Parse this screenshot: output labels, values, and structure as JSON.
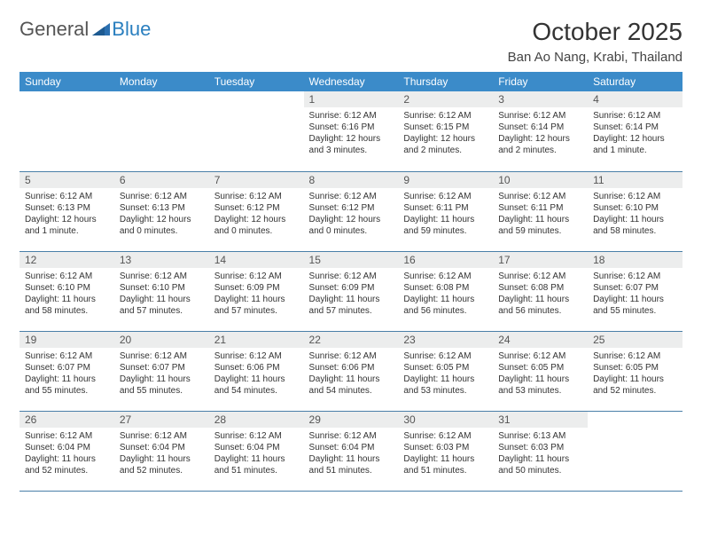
{
  "brand": {
    "part1": "General",
    "part2": "Blue"
  },
  "title": "October 2025",
  "location": "Ban Ao Nang, Krabi, Thailand",
  "colors": {
    "header_bg": "#3b8bc9",
    "header_text": "#ffffff",
    "daynum_bg": "#eceded",
    "row_border": "#4a7fa8",
    "brand_gray": "#555555",
    "brand_blue": "#2a7fbf",
    "logo_fill": "#2a6fb0"
  },
  "weekdays": [
    "Sunday",
    "Monday",
    "Tuesday",
    "Wednesday",
    "Thursday",
    "Friday",
    "Saturday"
  ],
  "weeks": [
    [
      {
        "empty": true
      },
      {
        "empty": true
      },
      {
        "empty": true
      },
      {
        "day": "1",
        "sunrise": "6:12 AM",
        "sunset": "6:16 PM",
        "daylight": "12 hours and 3 minutes."
      },
      {
        "day": "2",
        "sunrise": "6:12 AM",
        "sunset": "6:15 PM",
        "daylight": "12 hours and 2 minutes."
      },
      {
        "day": "3",
        "sunrise": "6:12 AM",
        "sunset": "6:14 PM",
        "daylight": "12 hours and 2 minutes."
      },
      {
        "day": "4",
        "sunrise": "6:12 AM",
        "sunset": "6:14 PM",
        "daylight": "12 hours and 1 minute."
      }
    ],
    [
      {
        "day": "5",
        "sunrise": "6:12 AM",
        "sunset": "6:13 PM",
        "daylight": "12 hours and 1 minute."
      },
      {
        "day": "6",
        "sunrise": "6:12 AM",
        "sunset": "6:13 PM",
        "daylight": "12 hours and 0 minutes."
      },
      {
        "day": "7",
        "sunrise": "6:12 AM",
        "sunset": "6:12 PM",
        "daylight": "12 hours and 0 minutes."
      },
      {
        "day": "8",
        "sunrise": "6:12 AM",
        "sunset": "6:12 PM",
        "daylight": "12 hours and 0 minutes."
      },
      {
        "day": "9",
        "sunrise": "6:12 AM",
        "sunset": "6:11 PM",
        "daylight": "11 hours and 59 minutes."
      },
      {
        "day": "10",
        "sunrise": "6:12 AM",
        "sunset": "6:11 PM",
        "daylight": "11 hours and 59 minutes."
      },
      {
        "day": "11",
        "sunrise": "6:12 AM",
        "sunset": "6:10 PM",
        "daylight": "11 hours and 58 minutes."
      }
    ],
    [
      {
        "day": "12",
        "sunrise": "6:12 AM",
        "sunset": "6:10 PM",
        "daylight": "11 hours and 58 minutes."
      },
      {
        "day": "13",
        "sunrise": "6:12 AM",
        "sunset": "6:10 PM",
        "daylight": "11 hours and 57 minutes."
      },
      {
        "day": "14",
        "sunrise": "6:12 AM",
        "sunset": "6:09 PM",
        "daylight": "11 hours and 57 minutes."
      },
      {
        "day": "15",
        "sunrise": "6:12 AM",
        "sunset": "6:09 PM",
        "daylight": "11 hours and 57 minutes."
      },
      {
        "day": "16",
        "sunrise": "6:12 AM",
        "sunset": "6:08 PM",
        "daylight": "11 hours and 56 minutes."
      },
      {
        "day": "17",
        "sunrise": "6:12 AM",
        "sunset": "6:08 PM",
        "daylight": "11 hours and 56 minutes."
      },
      {
        "day": "18",
        "sunrise": "6:12 AM",
        "sunset": "6:07 PM",
        "daylight": "11 hours and 55 minutes."
      }
    ],
    [
      {
        "day": "19",
        "sunrise": "6:12 AM",
        "sunset": "6:07 PM",
        "daylight": "11 hours and 55 minutes."
      },
      {
        "day": "20",
        "sunrise": "6:12 AM",
        "sunset": "6:07 PM",
        "daylight": "11 hours and 55 minutes."
      },
      {
        "day": "21",
        "sunrise": "6:12 AM",
        "sunset": "6:06 PM",
        "daylight": "11 hours and 54 minutes."
      },
      {
        "day": "22",
        "sunrise": "6:12 AM",
        "sunset": "6:06 PM",
        "daylight": "11 hours and 54 minutes."
      },
      {
        "day": "23",
        "sunrise": "6:12 AM",
        "sunset": "6:05 PM",
        "daylight": "11 hours and 53 minutes."
      },
      {
        "day": "24",
        "sunrise": "6:12 AM",
        "sunset": "6:05 PM",
        "daylight": "11 hours and 53 minutes."
      },
      {
        "day": "25",
        "sunrise": "6:12 AM",
        "sunset": "6:05 PM",
        "daylight": "11 hours and 52 minutes."
      }
    ],
    [
      {
        "day": "26",
        "sunrise": "6:12 AM",
        "sunset": "6:04 PM",
        "daylight": "11 hours and 52 minutes."
      },
      {
        "day": "27",
        "sunrise": "6:12 AM",
        "sunset": "6:04 PM",
        "daylight": "11 hours and 52 minutes."
      },
      {
        "day": "28",
        "sunrise": "6:12 AM",
        "sunset": "6:04 PM",
        "daylight": "11 hours and 51 minutes."
      },
      {
        "day": "29",
        "sunrise": "6:12 AM",
        "sunset": "6:04 PM",
        "daylight": "11 hours and 51 minutes."
      },
      {
        "day": "30",
        "sunrise": "6:12 AM",
        "sunset": "6:03 PM",
        "daylight": "11 hours and 51 minutes."
      },
      {
        "day": "31",
        "sunrise": "6:13 AM",
        "sunset": "6:03 PM",
        "daylight": "11 hours and 50 minutes."
      },
      {
        "empty": true
      }
    ]
  ]
}
